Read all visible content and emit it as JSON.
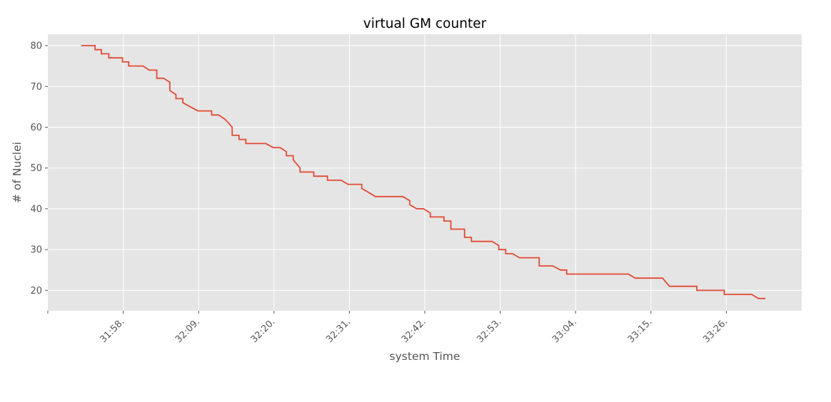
{
  "chart_data": {
    "type": "line",
    "title": "virtual GM counter",
    "xlabel": "system Time",
    "ylabel": "# of Nuclei",
    "grid": true,
    "colors": {
      "background": "#E5E5E5",
      "grid": "#FFFFFF",
      "line": "#E24A33"
    },
    "x_ticks": [
      {
        "t": 0,
        "label": ""
      },
      {
        "t": 11,
        "label": "31:58."
      },
      {
        "t": 22,
        "label": "32:09."
      },
      {
        "t": 33,
        "label": "32:20."
      },
      {
        "t": 44,
        "label": "32:31."
      },
      {
        "t": 55,
        "label": "32:42."
      },
      {
        "t": 66,
        "label": "32:53."
      },
      {
        "t": 77,
        "label": "33:04."
      },
      {
        "t": 88,
        "label": "33:15."
      },
      {
        "t": 99,
        "label": "33:26."
      }
    ],
    "y_ticks": [
      20,
      30,
      40,
      50,
      60,
      70,
      80
    ],
    "xlim": [
      0,
      110
    ],
    "ylim": [
      15,
      82.8
    ],
    "series": [
      {
        "points": [
          [
            4.9,
            80
          ],
          [
            6.9,
            80
          ],
          [
            6.9,
            79
          ],
          [
            7.8,
            79
          ],
          [
            7.8,
            78
          ],
          [
            8.9,
            78
          ],
          [
            8.9,
            77
          ],
          [
            10.9,
            77
          ],
          [
            10.9,
            76
          ],
          [
            11.8,
            76
          ],
          [
            11.8,
            75
          ],
          [
            13.9,
            75
          ],
          [
            14.8,
            74
          ],
          [
            15.9,
            74
          ],
          [
            15.9,
            72
          ],
          [
            16.9,
            72
          ],
          [
            17.8,
            71
          ],
          [
            17.8,
            69
          ],
          [
            18.7,
            68
          ],
          [
            18.7,
            67
          ],
          [
            19.7,
            67
          ],
          [
            19.7,
            66
          ],
          [
            20.8,
            65
          ],
          [
            21.9,
            64
          ],
          [
            23.9,
            64
          ],
          [
            23.9,
            63
          ],
          [
            24.9,
            63
          ],
          [
            25.8,
            62
          ],
          [
            26.4,
            61
          ],
          [
            26.9,
            60
          ],
          [
            26.9,
            58
          ],
          [
            27.9,
            58
          ],
          [
            27.9,
            57
          ],
          [
            28.9,
            57
          ],
          [
            28.9,
            56
          ],
          [
            31.8,
            56
          ],
          [
            32.9,
            55
          ],
          [
            33.9,
            55
          ],
          [
            34.8,
            54
          ],
          [
            34.8,
            53
          ],
          [
            35.8,
            53
          ],
          [
            35.8,
            52
          ],
          [
            36.8,
            50
          ],
          [
            36.8,
            49
          ],
          [
            38.8,
            49
          ],
          [
            38.8,
            48
          ],
          [
            40.8,
            48
          ],
          [
            40.8,
            47
          ],
          [
            42.8,
            47
          ],
          [
            43.8,
            46
          ],
          [
            45.8,
            46
          ],
          [
            45.8,
            45
          ],
          [
            47.8,
            43
          ],
          [
            51.8,
            43
          ],
          [
            52.8,
            42
          ],
          [
            52.8,
            41
          ],
          [
            53.8,
            40
          ],
          [
            54.8,
            40
          ],
          [
            55.8,
            39
          ],
          [
            55.8,
            38
          ],
          [
            57.8,
            38
          ],
          [
            57.8,
            37
          ],
          [
            58.8,
            37
          ],
          [
            58.8,
            35
          ],
          [
            60.8,
            35
          ],
          [
            60.8,
            33
          ],
          [
            61.8,
            33
          ],
          [
            61.8,
            32
          ],
          [
            64.8,
            32
          ],
          [
            65.8,
            31
          ],
          [
            65.8,
            30
          ],
          [
            66.8,
            30
          ],
          [
            66.8,
            29
          ],
          [
            67.8,
            29
          ],
          [
            68.8,
            28
          ],
          [
            71.7,
            28
          ],
          [
            71.7,
            26
          ],
          [
            73.7,
            26
          ],
          [
            74.8,
            25
          ],
          [
            75.7,
            25
          ],
          [
            75.7,
            24
          ],
          [
            84.7,
            24
          ],
          [
            85.7,
            23
          ],
          [
            89.7,
            23
          ],
          [
            90.7,
            21
          ],
          [
            94.7,
            21
          ],
          [
            94.7,
            20
          ],
          [
            98.7,
            20
          ],
          [
            98.7,
            19
          ],
          [
            102.7,
            19
          ],
          [
            103.7,
            18
          ],
          [
            104.7,
            18
          ]
        ]
      }
    ]
  }
}
